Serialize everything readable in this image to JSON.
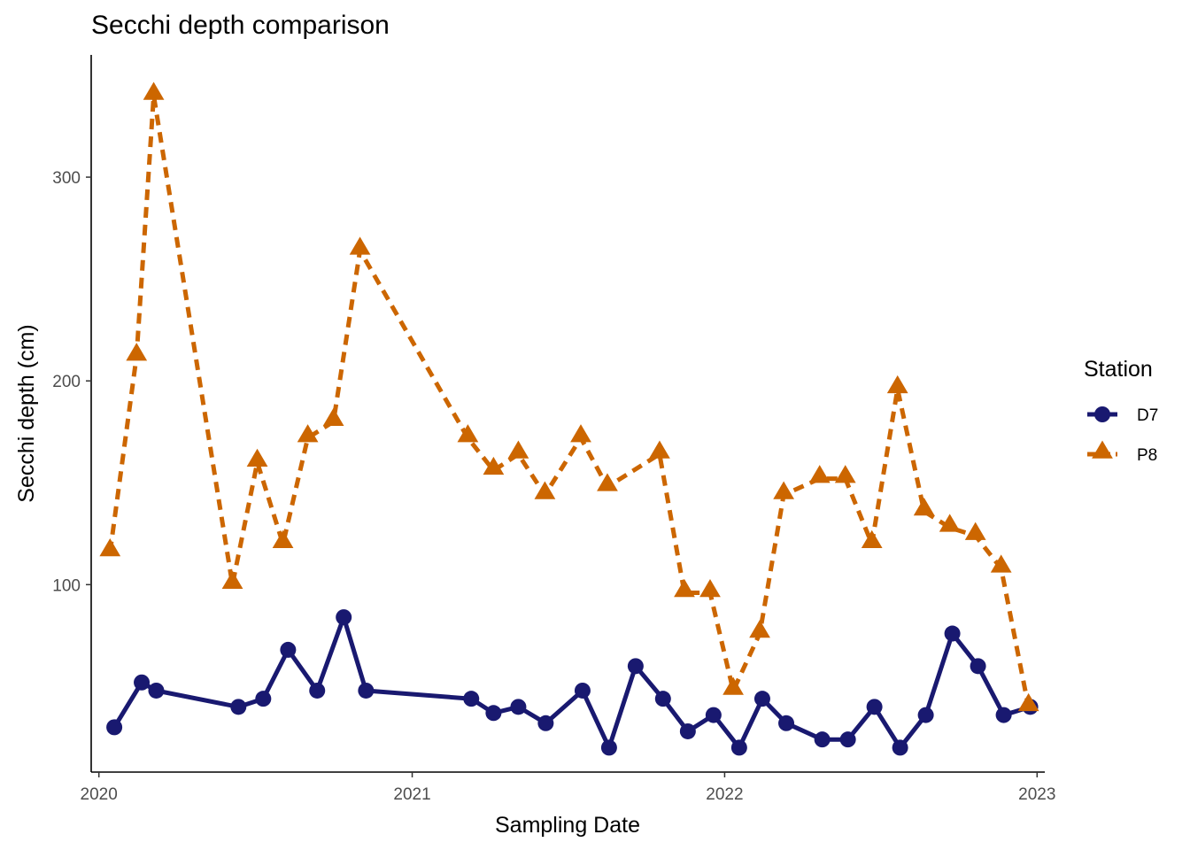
{
  "chart_data": {
    "type": "line",
    "title": "Secchi depth comparison",
    "xlabel": "Sampling Date",
    "ylabel": "Secchi depth (cm)",
    "x_axis_type": "date",
    "xlim": [
      "2019-12-23",
      "2023-01-10"
    ],
    "ylim": [
      8,
      360
    ],
    "xticks": [
      "2020-01-01",
      "2021-01-01",
      "2022-01-01",
      "2023-01-01"
    ],
    "xtick_labels": [
      "2020",
      "2021",
      "2022",
      "2023"
    ],
    "yticks": [
      100,
      200,
      300
    ],
    "ytick_labels": [
      "100",
      "200",
      "300"
    ],
    "grid": false,
    "legend": {
      "title": "Station",
      "position": "right"
    },
    "series": [
      {
        "name": "D7",
        "color": "#191970",
        "line_style": "solid",
        "marker": "circle",
        "points": [
          {
            "x": "2020-01-19",
            "y": 30
          },
          {
            "x": "2020-02-20",
            "y": 52
          },
          {
            "x": "2020-03-08",
            "y": 48
          },
          {
            "x": "2020-06-12",
            "y": 40
          },
          {
            "x": "2020-07-11",
            "y": 44
          },
          {
            "x": "2020-08-09",
            "y": 68
          },
          {
            "x": "2020-09-12",
            "y": 48
          },
          {
            "x": "2020-10-13",
            "y": 84
          },
          {
            "x": "2020-11-08",
            "y": 48
          },
          {
            "x": "2021-03-11",
            "y": 44
          },
          {
            "x": "2021-04-06",
            "y": 37
          },
          {
            "x": "2021-05-05",
            "y": 40
          },
          {
            "x": "2021-06-06",
            "y": 32
          },
          {
            "x": "2021-07-19",
            "y": 48
          },
          {
            "x": "2021-08-19",
            "y": 20
          },
          {
            "x": "2021-09-19",
            "y": 60
          },
          {
            "x": "2021-10-21",
            "y": 44
          },
          {
            "x": "2021-11-19",
            "y": 28
          },
          {
            "x": "2021-12-19",
            "y": 36
          },
          {
            "x": "2022-01-18",
            "y": 20
          },
          {
            "x": "2022-02-14",
            "y": 44
          },
          {
            "x": "2022-03-14",
            "y": 32
          },
          {
            "x": "2022-04-25",
            "y": 24
          },
          {
            "x": "2022-05-25",
            "y": 24
          },
          {
            "x": "2022-06-25",
            "y": 40
          },
          {
            "x": "2022-07-25",
            "y": 20
          },
          {
            "x": "2022-08-24",
            "y": 36
          },
          {
            "x": "2022-09-24",
            "y": 76
          },
          {
            "x": "2022-10-24",
            "y": 60
          },
          {
            "x": "2022-11-23",
            "y": 36
          },
          {
            "x": "2022-12-24",
            "y": 40
          }
        ]
      },
      {
        "name": "P8",
        "color": "#CC6600",
        "line_style": "dashed",
        "marker": "triangle",
        "points": [
          {
            "x": "2020-01-14",
            "y": 116
          },
          {
            "x": "2020-02-14",
            "y": 212
          },
          {
            "x": "2020-03-05",
            "y": 340
          },
          {
            "x": "2020-06-05",
            "y": 100
          },
          {
            "x": "2020-07-04",
            "y": 160
          },
          {
            "x": "2020-08-03",
            "y": 120
          },
          {
            "x": "2020-09-01",
            "y": 172
          },
          {
            "x": "2020-10-01",
            "y": 180
          },
          {
            "x": "2020-11-01",
            "y": 264
          },
          {
            "x": "2021-03-07",
            "y": 172
          },
          {
            "x": "2021-04-06",
            "y": 156
          },
          {
            "x": "2021-05-05",
            "y": 164
          },
          {
            "x": "2021-06-05",
            "y": 144
          },
          {
            "x": "2021-07-17",
            "y": 172
          },
          {
            "x": "2021-08-17",
            "y": 148
          },
          {
            "x": "2021-10-17",
            "y": 164
          },
          {
            "x": "2021-11-15",
            "y": 96
          },
          {
            "x": "2021-12-15",
            "y": 96
          },
          {
            "x": "2022-01-11",
            "y": 48
          },
          {
            "x": "2022-02-11",
            "y": 76
          },
          {
            "x": "2022-03-11",
            "y": 144
          },
          {
            "x": "2022-04-22",
            "y": 152
          },
          {
            "x": "2022-05-22",
            "y": 152
          },
          {
            "x": "2022-06-22",
            "y": 120
          },
          {
            "x": "2022-07-22",
            "y": 196
          },
          {
            "x": "2022-08-22",
            "y": 136
          },
          {
            "x": "2022-09-21",
            "y": 128
          },
          {
            "x": "2022-10-21",
            "y": 124
          },
          {
            "x": "2022-11-20",
            "y": 108
          },
          {
            "x": "2022-12-22",
            "y": 40
          }
        ]
      }
    ]
  }
}
